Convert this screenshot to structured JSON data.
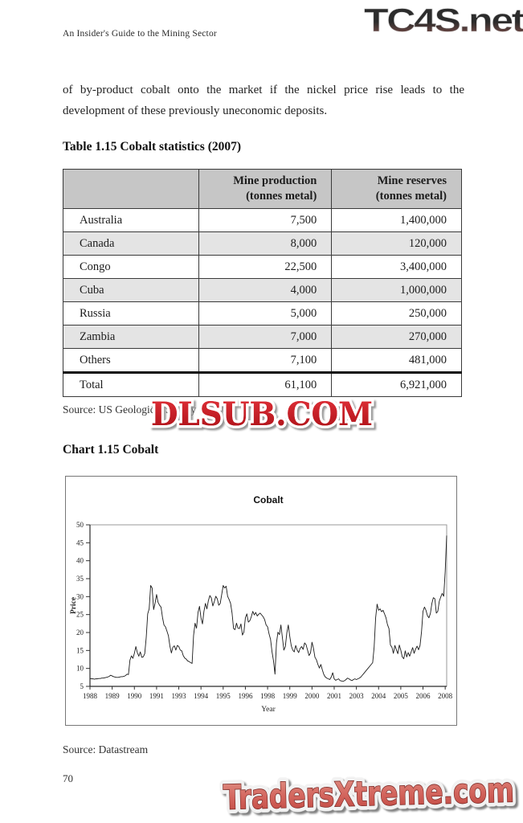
{
  "page": {
    "running_header": "An Insider's Guide to the Mining Sector",
    "page_number": "70"
  },
  "watermarks": {
    "top": "TC4S.net",
    "middle": "DLSUB.COM",
    "bottom": "TradersXtreme.com",
    "top_color_dark": "#2e2e2e",
    "top_color_red": "#8d5550",
    "middle_red": "#cc1820",
    "bottom_red": "#c9554e"
  },
  "body": {
    "paragraph": "of by-product cobalt onto the market if the nickel price rise leads to the development of these previously uneconomic deposits."
  },
  "table": {
    "title": "Table 1.15 Cobalt statistics (2007)",
    "columns": [
      {
        "line1": "",
        "line2": ""
      },
      {
        "line1": "Mine production",
        "line2": "(tonnes metal)"
      },
      {
        "line1": "Mine reserves",
        "line2": "(tonnes metal)"
      }
    ],
    "rows": [
      [
        "Australia",
        "7,500",
        "1,400,000"
      ],
      [
        "Canada",
        "8,000",
        "120,000"
      ],
      [
        "Congo",
        "22,500",
        "3,400,000"
      ],
      [
        "Cuba",
        "4,000",
        "1,000,000"
      ],
      [
        "Russia",
        "5,000",
        "250,000"
      ],
      [
        "Zambia",
        "7,000",
        "270,000"
      ],
      [
        "Others",
        "7,100",
        "481,000"
      ]
    ],
    "total_row": [
      "Total",
      "61,100",
      "6,921,000"
    ],
    "source": "Source: US Geological Survey"
  },
  "chart_section": {
    "heading": "Chart 1.15 Cobalt",
    "source": "Source: Datastream"
  },
  "chart_data": {
    "type": "line",
    "title": "Cobalt",
    "xlabel": "Year",
    "ylabel": "Price",
    "ylim": [
      5,
      50
    ],
    "ytick_step": 5,
    "grid": false,
    "legend": "none",
    "x_axis": "monthly categories Jan 1988 - Feb 2008, tick label every 15 months",
    "x_tick_interval_months": 15,
    "x_tick_labels": [
      "1988",
      "1989",
      "1990",
      "1991",
      "1993",
      "1994",
      "1995",
      "1996",
      "1998",
      "1999",
      "2000",
      "2001",
      "2003",
      "2004",
      "2005",
      "2006",
      "2008"
    ],
    "series": [
      {
        "name": "Cobalt price",
        "start_year": 1988,
        "frequency": "monthly",
        "values": [
          7.2,
          7.1,
          7.1,
          7.0,
          7.1,
          7.1,
          7.2,
          7.2,
          7.3,
          7.3,
          7.4,
          7.5,
          7.6,
          7.8,
          8.1,
          7.9,
          7.7,
          7.6,
          7.5,
          7.5,
          7.6,
          7.7,
          7.7,
          7.8,
          8.0,
          8.4,
          8.3,
          12.3,
          13.5,
          12.8,
          14.2,
          16.1,
          14.4,
          13.4,
          14.6,
          13.1,
          13.2,
          14.1,
          18.6,
          25.2,
          26.6,
          33.1,
          32.4,
          26.4,
          28.2,
          30.6,
          28.4,
          27.6,
          27.1,
          24.2,
          22.1,
          21.6,
          20.4,
          19.1,
          16.2,
          14.3,
          15.9,
          16.3,
          15.1,
          16.4,
          16.1,
          15.1,
          14.9,
          13.6,
          12.9,
          12.6,
          12.1,
          11.9,
          11.6,
          11.4,
          19.2,
          22.6,
          21.2,
          25.6,
          27.3,
          24.1,
          22.4,
          25.9,
          28.1,
          26.6,
          28.9,
          30.3,
          29.6,
          27.4,
          28.6,
          30.1,
          29.4,
          27.6,
          28.1,
          30.6,
          33.1,
          32.4,
          32.9,
          30.1,
          29.2,
          28.1,
          25.4,
          21.1,
          20.8,
          22.6,
          21.2,
          21.1,
          22.4,
          19.3,
          20.1,
          24.1,
          25.2,
          22.9,
          23.3,
          24.4,
          25.9,
          24.9,
          25.6,
          24.6,
          25.1,
          25.4,
          24.9,
          24.4,
          23.6,
          22.1,
          21.6,
          19.6,
          18.1,
          14.6,
          12.1,
          8.4,
          17.1,
          20.1,
          19.4,
          22.1,
          18.6,
          15.1,
          16.1,
          19.9,
          22.1,
          18.9,
          16.3,
          15.1,
          14.6,
          16.4,
          15.1,
          14.4,
          15.6,
          16.1,
          15.3,
          17.1,
          16.6,
          15.1,
          13.6,
          14.3,
          17.3,
          15.6,
          13.1,
          12.4,
          11.1,
          10.1,
          11.1,
          9.6,
          8.3,
          7.6,
          7.3,
          7.1,
          6.9,
          7.6,
          8.8,
          7.1,
          6.7,
          6.9,
          7.1,
          6.6,
          6.5,
          6.4,
          6.6,
          6.9,
          7.3,
          7.1,
          6.8,
          6.6,
          6.9,
          7.1,
          6.9,
          7.1,
          7.3,
          7.6,
          8.1,
          8.6,
          9.1,
          9.6,
          10.1,
          10.6,
          11.1,
          11.6,
          16.0,
          24.1,
          27.9,
          26.2,
          26.6,
          25.8,
          26.2,
          25.2,
          24.1,
          22.2,
          21.1,
          16.5,
          15.9,
          14.2,
          16.4,
          15.2,
          14.1,
          16.5,
          15.1,
          13.2,
          12.7,
          14.9,
          13.2,
          14.4,
          13.4,
          14.6,
          15.8,
          14.2,
          15.4,
          16.2,
          15.2,
          16.4,
          20.2,
          25.9,
          27.1,
          26.2,
          24.7,
          24.1,
          25.3,
          28.1,
          29.7,
          29.4,
          25.4,
          25.9,
          28.7,
          29.9,
          30.9,
          30.1,
          37.0,
          47.0
        ]
      }
    ]
  }
}
